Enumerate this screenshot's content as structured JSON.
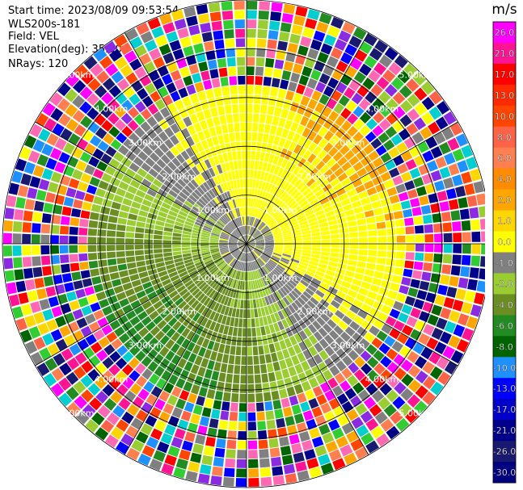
{
  "header": {
    "start_time": "Start time: 2023/08/09 09:53:54",
    "instrument": "WLS200s-181",
    "field": "Field: VEL",
    "elevation": "Elevation(deg): 35.30",
    "nrays": "NRays: 120"
  },
  "chart_data": {
    "type": "heatmap",
    "subtype": "polar-ppi",
    "field": "VEL",
    "units": "m/s",
    "n_rays": 120,
    "range_rings_km": [
      1.0,
      2.0,
      3.0,
      4.0,
      5.0
    ],
    "range_ring_labels": [
      "1.00km",
      "2.00km",
      "3.00km",
      "4.00km",
      "5.00km"
    ],
    "max_range_km": 5.0,
    "grid": true,
    "colorbar": {
      "label": "m/s",
      "ticks": [
        "26.0",
        "21.0",
        "17.0",
        "13.0",
        "10.0",
        "8.0",
        "6.0",
        "4.0",
        "2.0",
        "1.0",
        "0.0",
        "-1.0",
        "-2.0",
        "-4.0",
        "-6.0",
        "-8.0",
        "-10.0",
        "-13.0",
        "-17.0",
        "-21.0",
        "-26.0",
        "-30.0"
      ],
      "colors": [
        "#ff00ff",
        "#ff1493",
        "#ff0000",
        "#ff2a00",
        "#ff4500",
        "#ff6347",
        "#ff7f50",
        "#ff8c00",
        "#ffa500",
        "#ffd700",
        "#ffff00",
        "#808080",
        "#9acd32",
        "#6b8e23",
        "#228b22",
        "#006400",
        "#1e90ff",
        "#0000ff",
        "#0000cd",
        "#00008b",
        "#191970",
        "#000080"
      ],
      "ring_colors": [
        "#228b22",
        "#9acd32",
        "#6b8e23",
        "#808080",
        "#ffff00",
        "#ffd700",
        "#ffa500",
        "#ff8c00"
      ],
      "noise_colors": [
        "#ff00ff",
        "#ff1493",
        "#ff0000",
        "#ff4500",
        "#ff6347",
        "#ffd700",
        "#ffff00",
        "#ffa500",
        "#9acd32",
        "#228b22",
        "#006400",
        "#1e90ff",
        "#0000ff",
        "#000080",
        "#00008b",
        "#808080",
        "#ff7f50",
        "#191970",
        "#8a2be2",
        "#00ced1",
        "#ff69b4",
        "#32cd32"
      ]
    }
  }
}
